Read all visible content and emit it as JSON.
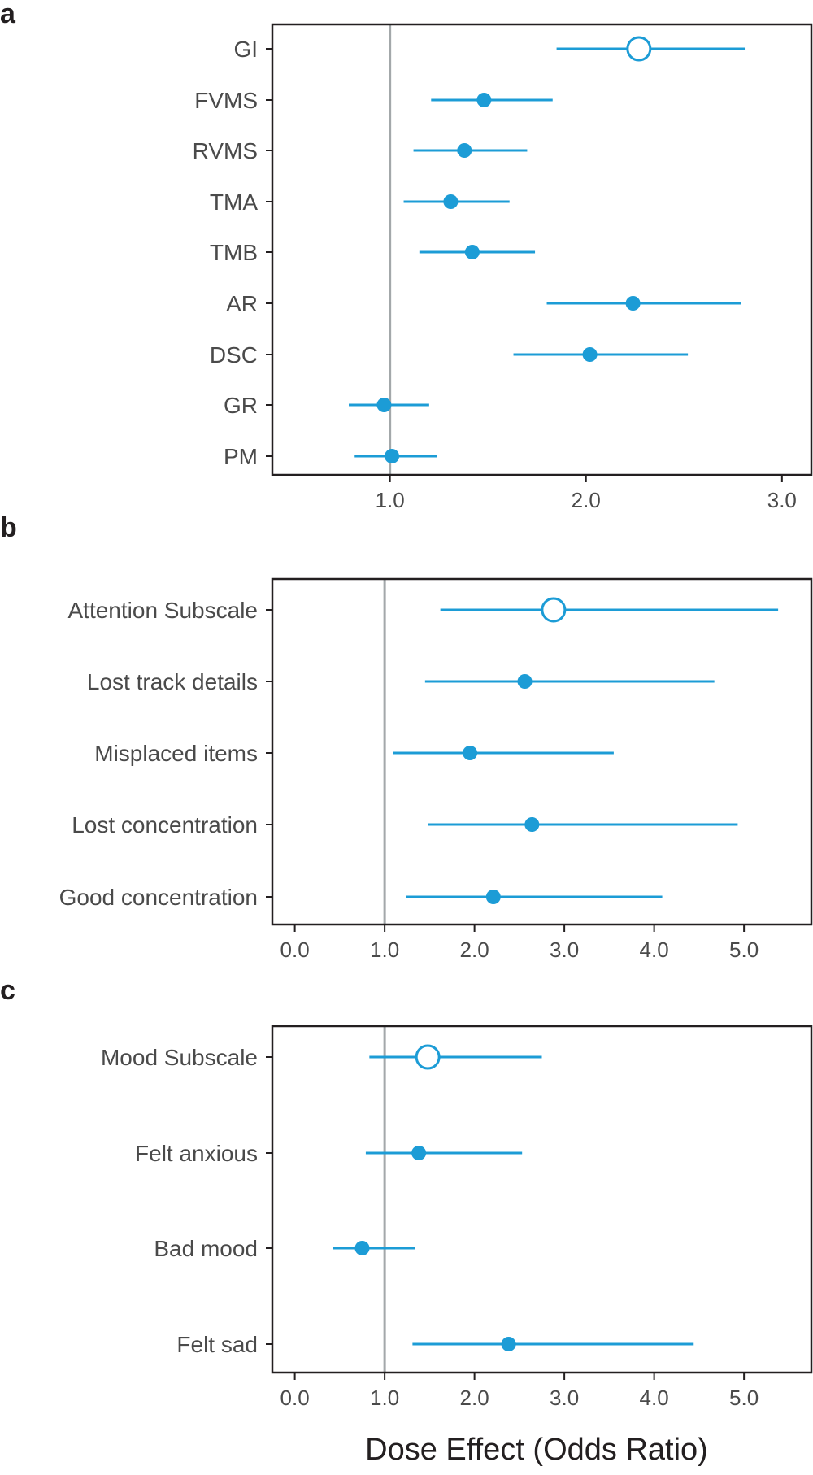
{
  "colors": {
    "series": "#1c9cd6",
    "reference": "#a3a8aa",
    "axis": "#231f20",
    "text": "#4a4a4a"
  },
  "x_axis_label": "Dose Effect (Odds Ratio)",
  "chart_data": [
    {
      "panel": "a",
      "type": "forest",
      "xlim": [
        0.4,
        3.15
      ],
      "xticks": [
        1.0,
        2.0,
        3.0
      ],
      "xtick_labels": [
        "1.0",
        "2.0",
        "3.0"
      ],
      "reference_line": 1.0,
      "rows": [
        {
          "label": "GI",
          "or": 2.27,
          "lower": 1.85,
          "upper": 2.81,
          "summary": true
        },
        {
          "label": "FVMS",
          "or": 1.48,
          "lower": 1.21,
          "upper": 1.83,
          "summary": false
        },
        {
          "label": "RVMS",
          "or": 1.38,
          "lower": 1.12,
          "upper": 1.7,
          "summary": false
        },
        {
          "label": "TMA",
          "or": 1.31,
          "lower": 1.07,
          "upper": 1.61,
          "summary": false
        },
        {
          "label": "TMB",
          "or": 1.42,
          "lower": 1.15,
          "upper": 1.74,
          "summary": false
        },
        {
          "label": "AR",
          "or": 2.24,
          "lower": 1.8,
          "upper": 2.79,
          "summary": false
        },
        {
          "label": "DSC",
          "or": 2.02,
          "lower": 1.63,
          "upper": 2.52,
          "summary": false
        },
        {
          "label": "GR",
          "or": 0.97,
          "lower": 0.79,
          "upper": 1.2,
          "summary": false
        },
        {
          "label": "PM",
          "or": 1.01,
          "lower": 0.82,
          "upper": 1.24,
          "summary": false
        }
      ]
    },
    {
      "panel": "b",
      "type": "forest",
      "xlim": [
        -0.25,
        5.75
      ],
      "xticks": [
        0.0,
        1.0,
        2.0,
        3.0,
        4.0,
        5.0
      ],
      "xtick_labels": [
        "0.0",
        "1.0",
        "2.0",
        "3.0",
        "4.0",
        "5.0"
      ],
      "reference_line": 1.0,
      "rows": [
        {
          "label": "Attention Subscale",
          "or": 2.88,
          "lower": 1.62,
          "upper": 5.38,
          "summary": true
        },
        {
          "label": "Lost track details",
          "or": 2.56,
          "lower": 1.45,
          "upper": 4.67,
          "summary": false
        },
        {
          "label": "Misplaced items",
          "or": 1.95,
          "lower": 1.09,
          "upper": 3.55,
          "summary": false
        },
        {
          "label": "Lost concentration",
          "or": 2.64,
          "lower": 1.48,
          "upper": 4.93,
          "summary": false
        },
        {
          "label": "Good concentration",
          "or": 2.21,
          "lower": 1.24,
          "upper": 4.09,
          "summary": false
        }
      ]
    },
    {
      "panel": "c",
      "type": "forest",
      "xlim": [
        -0.25,
        5.75
      ],
      "xticks": [
        0.0,
        1.0,
        2.0,
        3.0,
        4.0,
        5.0
      ],
      "xtick_labels": [
        "0.0",
        "1.0",
        "2.0",
        "3.0",
        "4.0",
        "5.0"
      ],
      "reference_line": 1.0,
      "rows": [
        {
          "label": "Mood Subscale",
          "or": 1.48,
          "lower": 0.83,
          "upper": 2.75,
          "summary": true
        },
        {
          "label": "Felt anxious",
          "or": 1.38,
          "lower": 0.79,
          "upper": 2.53,
          "summary": false
        },
        {
          "label": "Bad mood",
          "or": 0.75,
          "lower": 0.42,
          "upper": 1.34,
          "summary": false
        },
        {
          "label": "Felt sad",
          "or": 2.38,
          "lower": 1.31,
          "upper": 4.44,
          "summary": false
        }
      ]
    }
  ]
}
